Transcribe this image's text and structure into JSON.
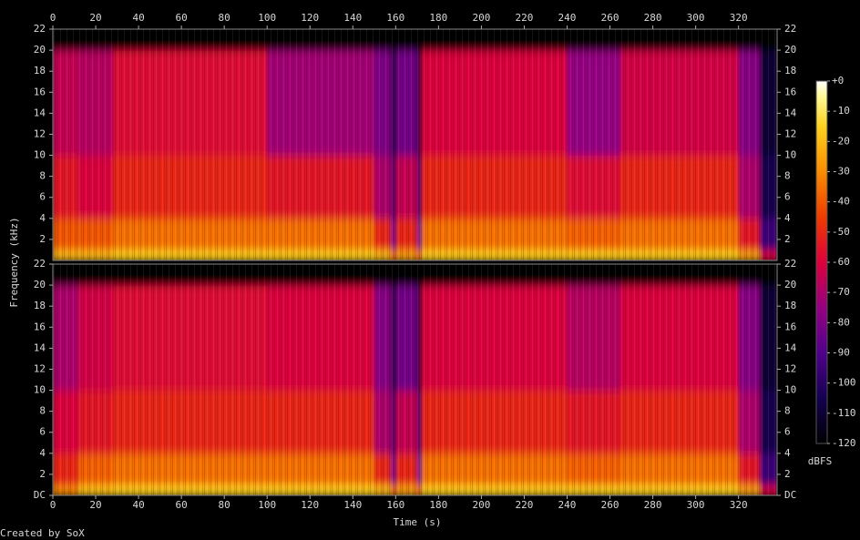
{
  "chart_data": {
    "type": "heatmap",
    "x_label": "Time (s)",
    "y_label": "Frequency (kHz)",
    "credit": "Created by SoX",
    "xlim": [
      0,
      338
    ],
    "xticks": [
      0,
      20,
      40,
      60,
      80,
      100,
      120,
      140,
      160,
      180,
      200,
      220,
      240,
      260,
      280,
      300,
      320
    ],
    "x_edges": [
      0,
      12,
      28,
      100,
      150,
      158,
      160,
      170,
      172,
      240,
      265,
      320,
      330,
      338
    ],
    "freq_edges": [
      0,
      1,
      4,
      10,
      20,
      22
    ],
    "channels": [
      {
        "ylim": [
          0,
          22
        ],
        "yticks": [
          2,
          4,
          6,
          8,
          10,
          12,
          14,
          16,
          18,
          20,
          22
        ],
        "values": [
          [
            -20,
            -40,
            -55,
            -65,
            -120
          ],
          [
            -20,
            -40,
            -60,
            -68,
            -120
          ],
          [
            -15,
            -35,
            -50,
            -58,
            -120
          ],
          [
            -15,
            -35,
            -55,
            -72,
            -120
          ],
          [
            -20,
            -50,
            -70,
            -80,
            -120
          ],
          [
            -40,
            -90,
            -100,
            -110,
            -120
          ],
          [
            -25,
            -50,
            -65,
            -82,
            -120
          ],
          [
            -40,
            -90,
            -100,
            -110,
            -120
          ],
          [
            -15,
            -35,
            -50,
            -60,
            -120
          ],
          [
            -15,
            -38,
            -58,
            -75,
            -120
          ],
          [
            -15,
            -35,
            -50,
            -62,
            -120
          ],
          [
            -25,
            -55,
            -70,
            -78,
            -120
          ],
          [
            -60,
            -95,
            -105,
            -110,
            -120
          ]
        ]
      },
      {
        "ylim": [
          0,
          22
        ],
        "yticks": [
          {
            "value": 0,
            "label": "DC"
          },
          2,
          4,
          6,
          8,
          10,
          12,
          14,
          16,
          18,
          20,
          22
        ],
        "values": [
          [
            -30,
            -50,
            -60,
            -70,
            -120
          ],
          [
            -18,
            -38,
            -55,
            -62,
            -120
          ],
          [
            -15,
            -35,
            -50,
            -58,
            -120
          ],
          [
            -15,
            -35,
            -50,
            -60,
            -120
          ],
          [
            -20,
            -50,
            -70,
            -78,
            -120
          ],
          [
            -40,
            -90,
            -100,
            -110,
            -120
          ],
          [
            -25,
            -50,
            -65,
            -82,
            -120
          ],
          [
            -40,
            -90,
            -100,
            -110,
            -120
          ],
          [
            -15,
            -35,
            -50,
            -60,
            -120
          ],
          [
            -15,
            -38,
            -55,
            -68,
            -120
          ],
          [
            -15,
            -35,
            -50,
            -60,
            -120
          ],
          [
            -25,
            -55,
            -70,
            -78,
            -120
          ],
          [
            -60,
            -95,
            -105,
            -110,
            -120
          ]
        ]
      }
    ],
    "colorbar": {
      "label": "dBFS",
      "lim": [
        0,
        -120
      ],
      "ticks": [
        {
          "value": 0,
          "label": "+0"
        },
        -10,
        -20,
        -30,
        -40,
        -50,
        -60,
        -70,
        -80,
        -90,
        -100,
        -110,
        -120
      ]
    }
  }
}
